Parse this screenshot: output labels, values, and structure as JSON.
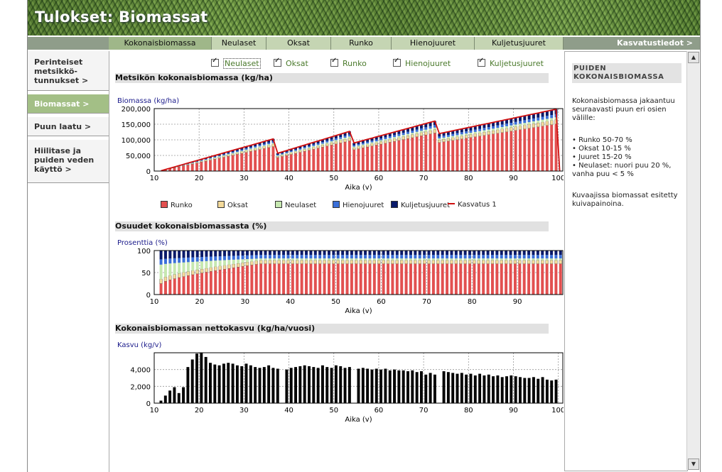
{
  "header": {
    "title": "Tulokset: Biomassat"
  },
  "tabs": [
    {
      "label": "Kokonaisbiomassa",
      "active": true
    },
    {
      "label": "Neulaset",
      "active": false
    },
    {
      "label": "Oksat",
      "active": false
    },
    {
      "label": "Runko",
      "active": false
    },
    {
      "label": "Hienojuuret",
      "active": false
    },
    {
      "label": "Kuljetusjuuret",
      "active": false
    }
  ],
  "kasvatustiedot": "Kasvatustiedot >",
  "nav": [
    {
      "label": "Perinteiset metsikkö-tunnukset >",
      "active": false
    },
    {
      "label": "Biomassat >",
      "active": true
    },
    {
      "label": "Puun laatu >",
      "active": false
    },
    {
      "label": "Hiilitase ja puiden veden käyttö >",
      "active": false
    }
  ],
  "selectors": [
    {
      "label": "Neulaset",
      "checked": true
    },
    {
      "label": "Oksat",
      "checked": true
    },
    {
      "label": "Runko",
      "checked": true
    },
    {
      "label": "Hienojuuret",
      "checked": true
    },
    {
      "label": "Kuljetusjuuret",
      "checked": true
    }
  ],
  "sections": {
    "total": "Metsikön kokonaisbiomassa (kg/ha)",
    "share": "Osuudet kokonaisbiomassasta (%)",
    "growth": "Kokonaisbiomassan nettokasvu (kg/ha/vuosi)"
  },
  "colors": {
    "runko": "#e25050",
    "oksat": "#f3d99a",
    "neulaset": "#c6e8b0",
    "hienojuuret": "#3a6fd8",
    "kuljetusjuuret": "#0a1a6a",
    "kasvatus": "#d01010",
    "growth": "#000000"
  },
  "legend": [
    "Runko",
    "Oksat",
    "Neulaset",
    "Hienojuuret",
    "Kuljetusjuuret",
    "Kasvatus 1"
  ],
  "chart_data": [
    {
      "type": "bar",
      "title": "Metsikön kokonaisbiomassa (kg/ha)",
      "ylabel": "Biomassa (kg/ha)",
      "xlabel": "Aika (v)",
      "xlim": [
        10,
        101
      ],
      "xticks": [
        10,
        20,
        30,
        40,
        50,
        60,
        70,
        80,
        90,
        100
      ],
      "ylim": [
        0,
        200000
      ],
      "yticks": [
        0,
        50000,
        100000,
        150000,
        200000
      ],
      "ytick_labels": [
        "0",
        "50,000",
        "100,000",
        "150,000",
        "200,000"
      ],
      "stacked": true,
      "line_series": "Kasvatus 1",
      "segments": [
        {
          "start": 11,
          "end": 36,
          "v0": 1000,
          "v1": 103000
        },
        {
          "start": 37,
          "end": 53,
          "v0": 57000,
          "v1": 127000
        },
        {
          "start": 54,
          "end": 72,
          "v0": 90000,
          "v1": 160000
        },
        {
          "start": 73,
          "end": 99,
          "v0": 120000,
          "v1": 198000
        }
      ],
      "shares": {
        "runko": 0.76,
        "oksat": 0.07,
        "neulaset": 0.04,
        "hienojuuret": 0.05,
        "kuljetusjuuret": 0.08
      }
    },
    {
      "type": "bar",
      "title": "Osuudet kokonaisbiomassasta (%)",
      "ylabel": "Prosenttia (%)",
      "xlabel": "Aika (v)",
      "xlim": [
        10,
        100
      ],
      "xticks": [
        10,
        20,
        30,
        40,
        50,
        60,
        70,
        80,
        90
      ],
      "ylim": [
        0,
        100
      ],
      "yticks": [
        0,
        50,
        100
      ],
      "stacked": true,
      "start_year": 11,
      "end_year": 99,
      "early": {
        "runko": 25,
        "oksat": 10,
        "neulaset": 33,
        "hienojuuret": 12,
        "kuljetusjuuret": 20
      },
      "late": {
        "runko": 70,
        "oksat": 8,
        "neulaset": 4,
        "hienojuuret": 8,
        "kuljetusjuuret": 10
      },
      "transition_years": 22
    },
    {
      "type": "bar",
      "title": "Kokonaisbiomassan nettokasvu (kg/ha/vuosi)",
      "ylabel": "Kasvu (kg/v)",
      "xlabel": "Aika (v)",
      "xlim": [
        10,
        101
      ],
      "xticks": [
        10,
        20,
        30,
        40,
        50,
        60,
        70,
        80,
        90,
        100
      ],
      "ylim": [
        0,
        6000
      ],
      "yticks": [
        0,
        2000,
        4000
      ],
      "ytick_labels": [
        "0",
        "2,000",
        "4,000"
      ],
      "x": [
        11,
        12,
        13,
        14,
        15,
        16,
        17,
        18,
        19,
        20,
        21,
        22,
        23,
        24,
        25,
        26,
        27,
        28,
        29,
        30,
        31,
        32,
        33,
        34,
        35,
        36,
        37,
        38,
        39,
        40,
        41,
        42,
        43,
        44,
        45,
        46,
        47,
        48,
        49,
        50,
        51,
        52,
        53,
        54,
        55,
        56,
        57,
        58,
        59,
        60,
        61,
        62,
        63,
        64,
        65,
        66,
        67,
        68,
        69,
        70,
        71,
        72,
        73,
        74,
        75,
        76,
        77,
        78,
        79,
        80,
        81,
        82,
        83,
        84,
        85,
        86,
        87,
        88,
        89,
        90,
        91,
        92,
        93,
        94,
        95,
        96,
        97,
        98,
        99
      ],
      "values": [
        300,
        900,
        1500,
        1900,
        1200,
        1900,
        4300,
        5200,
        5900,
        6000,
        5500,
        4800,
        4600,
        4500,
        4700,
        4800,
        4700,
        4500,
        4400,
        4700,
        4500,
        4300,
        4200,
        4300,
        4500,
        4200,
        4100,
        0,
        4000,
        4200,
        4300,
        4400,
        4500,
        4400,
        4300,
        4200,
        4500,
        4300,
        4200,
        4500,
        4400,
        4200,
        4300,
        0,
        4100,
        4200,
        4100,
        4000,
        4100,
        4000,
        4100,
        3900,
        4000,
        3900,
        3900,
        3800,
        3900,
        3700,
        3800,
        3400,
        3600,
        3400,
        0,
        3800,
        3700,
        3600,
        3500,
        3600,
        3400,
        3500,
        3300,
        3500,
        3300,
        3400,
        3200,
        3300,
        3100,
        3200,
        3300,
        3200,
        3100,
        3000,
        3000,
        3100,
        2900,
        3100,
        2800,
        2700,
        2800
      ]
    }
  ],
  "rightpanel": {
    "title": "Puiden kokonaisbiomassa",
    "intro": "Kokonaisbiomassa jakaantuu seuraavasti puun eri osien välille:",
    "bullets": [
      "• Runko 50-70 %",
      "• Oksat 10-15 %",
      "• Juuret 15-20 %",
      "• Neulaset: nuori puu 20 %, vanha puu < 5 %"
    ],
    "footer": "Kuvaajissa biomassat esitetty kuivapainoina."
  }
}
